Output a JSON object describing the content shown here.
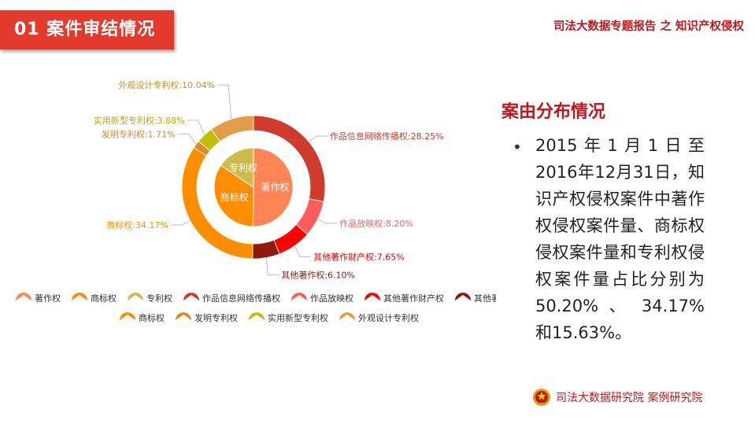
{
  "header": {
    "tab_title": "01  案件审结情况",
    "report_title": "司法大数据专题报告 之 知识产权侵权"
  },
  "right_panel": {
    "section_title": "案由分布情况",
    "bullet": "•",
    "description": "2015年1月1日至2016年12月31日，知识产权侵权案件中著作权侵权案件量、商标权侵权案件量和专利权侵权案件量占比分别为 50.20% 、 34.17% 和15.63%。"
  },
  "footer": {
    "text": "司法大数据研究院  案例研究院",
    "emblem_icon": "court-emblem-icon"
  },
  "chart_data": {
    "type": "pie",
    "inner": {
      "slices": [
        {
          "label": "著作权",
          "value": 50.2,
          "color": "#ff8456"
        },
        {
          "label": "商标权",
          "value": 34.17,
          "color": "#ff8d00"
        },
        {
          "label": "专利权",
          "value": 15.63,
          "color": "#cdbc4d"
        }
      ]
    },
    "outer": {
      "slices": [
        {
          "label": "作品信息网络传播权",
          "value": 28.25,
          "color": "#cf3b2d",
          "text": "作品信息网络传播权:28.25%",
          "text_color": "#cf3b2d"
        },
        {
          "label": "作品放映权",
          "value": 8.2,
          "color": "#fb5c5c",
          "text": "作品放映权:8.20%",
          "text_color": "#fb5c5c"
        },
        {
          "label": "其他著作财产权",
          "value": 7.65,
          "color": "#ff0000",
          "text": "其他著作财产权:7.65%",
          "text_color": "#e00000"
        },
        {
          "label": "其他著作权",
          "value": 6.1,
          "color": "#8c1a0e",
          "text": "其他著作权:6.10%",
          "text_color": "#8c1a0e"
        },
        {
          "label": "商标权",
          "value": 34.17,
          "color": "#ff8d00",
          "text": "商标权:34.17%",
          "text_color": "#ff8d00"
        },
        {
          "label": "发明专利权",
          "value": 1.71,
          "color": "#e08a2c",
          "text": "发明专利权:1.71%",
          "text_color": "#d08a2c"
        },
        {
          "label": "实用新型专利权",
          "value": 3.88,
          "color": "#c2bc0b",
          "text": "实用新型专利权:3.88%",
          "text_color": "#b5b000"
        },
        {
          "label": "外观设计专利权",
          "value": 10.04,
          "color": "#e29d48",
          "text": "外观设计专利权:10.04%",
          "text_color": "#d08a2c"
        }
      ]
    },
    "legend": {
      "placement": "bottom-left",
      "rows": [
        [
          {
            "label": "著作权",
            "color": "#ff8456"
          },
          {
            "label": "商标权",
            "color": "#ff8d00"
          },
          {
            "label": "专利权",
            "color": "#cdbc4d"
          },
          {
            "label": "作品信息网络传播权",
            "color": "#cf3b2d"
          },
          {
            "label": "作品放映权",
            "color": "#fb5c5c"
          },
          {
            "label": "其他著作财产权",
            "color": "#ff0000"
          },
          {
            "label": "其他著作权",
            "color": "#8c1a0e"
          }
        ],
        [
          {
            "label": "商标权",
            "color": "#ff8d00"
          },
          {
            "label": "发明专利权",
            "color": "#e08a2c"
          },
          {
            "label": "实用新型专利权",
            "color": "#c2bc0b"
          },
          {
            "label": "外观设计专利权",
            "color": "#e29d48"
          }
        ]
      ]
    }
  }
}
